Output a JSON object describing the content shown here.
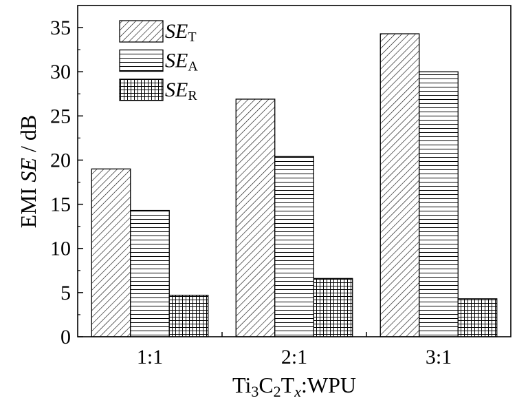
{
  "chart_data": {
    "type": "bar",
    "categories": [
      "1:1",
      "2:1",
      "3:1"
    ],
    "series": [
      {
        "name": "SE_T",
        "label_main": "SE",
        "label_sub": "T",
        "pattern": "diagonal",
        "values": [
          19.0,
          26.9,
          34.3
        ]
      },
      {
        "name": "SE_A",
        "label_main": "SE",
        "label_sub": "A",
        "pattern": "horizontal",
        "values": [
          14.3,
          20.4,
          30.0
        ]
      },
      {
        "name": "SE_R",
        "label_main": "SE",
        "label_sub": "R",
        "pattern": "grid",
        "values": [
          4.7,
          6.6,
          4.3
        ]
      }
    ],
    "ylim": [
      0,
      37.5
    ],
    "yticks": [
      0,
      5,
      10,
      15,
      20,
      25,
      30,
      35
    ],
    "ylabel": {
      "prefix": "EMI ",
      "italic": "SE",
      "suffix": " / dB"
    },
    "xlabel": {
      "p1": "Ti",
      "s1": "3",
      "p2": "C",
      "s2": "2",
      "p3": "T",
      "s3": "x",
      "p4": ":WPU"
    },
    "legend_position": "top-left",
    "grid": false
  }
}
